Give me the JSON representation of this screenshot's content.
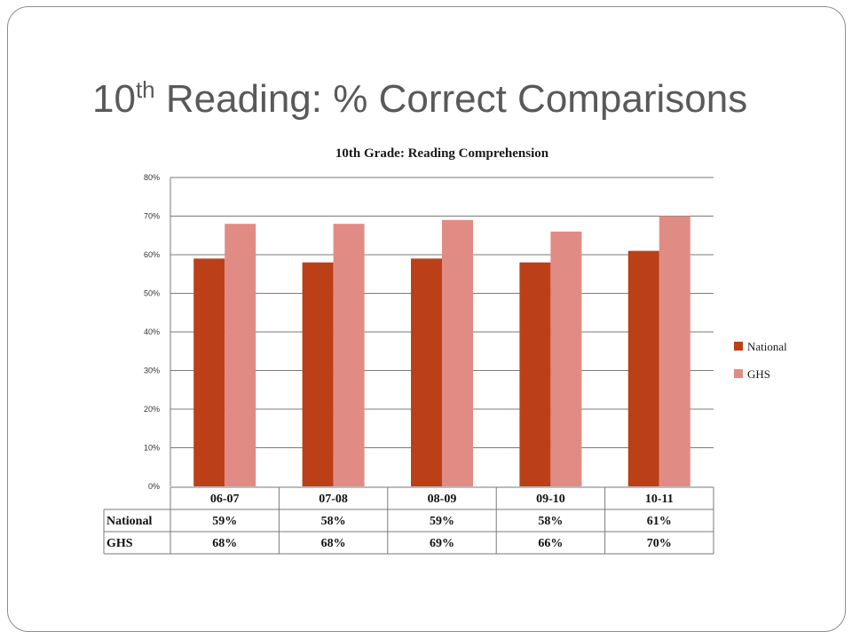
{
  "slide": {
    "title_main": "10",
    "title_sup": "th",
    "title_rest": " Reading: % Correct Comparisons"
  },
  "chart_data": {
    "type": "bar",
    "title": "10th Grade: Reading Comprehension",
    "categories": [
      "06-07",
      "07-08",
      "08-09",
      "09-10",
      "10-11"
    ],
    "series": [
      {
        "name": "National",
        "values": [
          59,
          58,
          59,
          58,
          61
        ],
        "labels": [
          "59%",
          "58%",
          "59%",
          "58%",
          "61%"
        ],
        "color": "#bb4017"
      },
      {
        "name": "GHS",
        "values": [
          68,
          68,
          69,
          66,
          70
        ],
        "labels": [
          "68%",
          "68%",
          "69%",
          "66%",
          "70%"
        ],
        "color": "#e08c84"
      }
    ],
    "ylim": [
      0,
      80
    ],
    "yticks": [
      "0%",
      "10%",
      "20%",
      "30%",
      "40%",
      "50%",
      "60%",
      "70%",
      "80%"
    ],
    "xlabel": "",
    "ylabel": "",
    "grid": true,
    "legend": "right",
    "data_table": true
  }
}
